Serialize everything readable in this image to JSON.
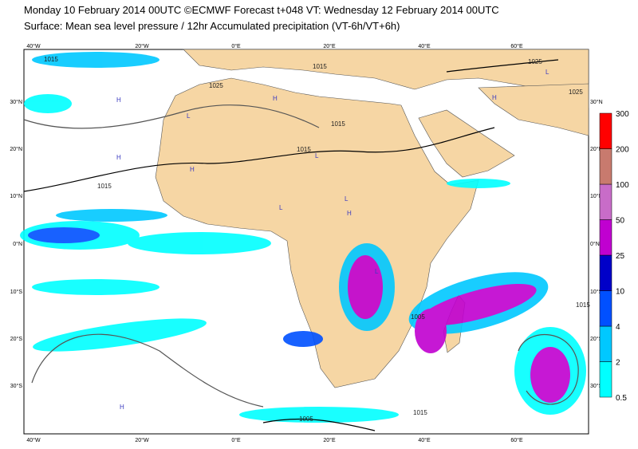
{
  "header": {
    "line1": "Monday 10 February 2014 00UTC ©ECMWF Forecast t+048 VT: Wednesday 12 February 2014 00UTC",
    "line2": "Surface: Mean sea level pressure / 12hr Accumulated precipitation (VT-6h/VT+6h)"
  },
  "lon_labels": [
    "40°W",
    "20°W",
    "0°E",
    "20°E",
    "40°E",
    "60°E"
  ],
  "lat_labels": [
    "30°N",
    "20°N",
    "10°N",
    "0°N",
    "10°S",
    "20°S",
    "30°S"
  ],
  "colorbar": {
    "levels": [
      {
        "label": "0.5",
        "color": "#00ffff"
      },
      {
        "label": "2",
        "color": "#00c8ff"
      },
      {
        "label": "4",
        "color": "#0050ff"
      },
      {
        "label": "10",
        "color": "#0000c8"
      },
      {
        "label": "25",
        "color": "#c000d0"
      },
      {
        "label": "50",
        "color": "#c86cc8"
      },
      {
        "label": "100",
        "color": "#c87a6e"
      },
      {
        "label": "200",
        "color": "#ff0000"
      },
      {
        "label": "300",
        "color": null
      }
    ]
  },
  "isobar_labels": [
    "1015",
    "1015",
    "1025",
    "1015",
    "1015",
    "1015",
    "1025",
    "1025",
    "1005",
    "1015",
    "1005",
    "1015"
  ],
  "pressure_centres": [
    "H",
    "H",
    "L",
    "H",
    "L",
    "H",
    "L",
    "L",
    "H",
    "L",
    "H",
    "L",
    "H"
  ]
}
